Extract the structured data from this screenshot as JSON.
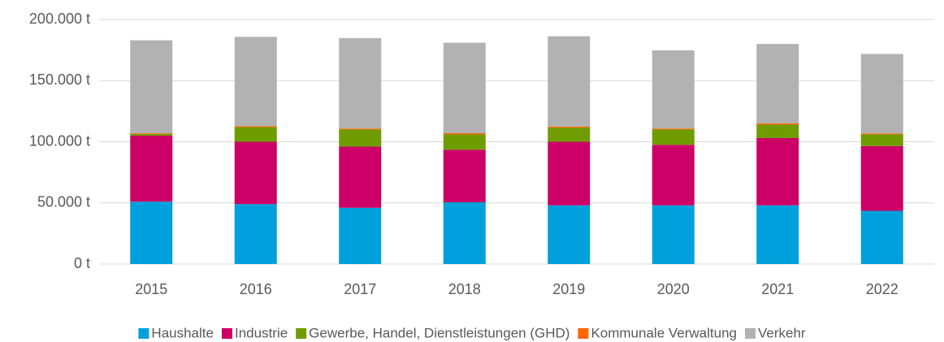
{
  "chart_data": {
    "type": "stacked_bar",
    "categories": [
      "2015",
      "2016",
      "2017",
      "2018",
      "2019",
      "2020",
      "2021",
      "2022"
    ],
    "series": [
      {
        "name": "Haushalte",
        "color": "#00a0dc",
        "values": [
          51000,
          49000,
          46000,
          50500,
          48000,
          48000,
          48000,
          43500
        ]
      },
      {
        "name": "Industrie",
        "color": "#cc0066",
        "values": [
          54000,
          51000,
          50000,
          43000,
          52000,
          49500,
          55000,
          53000
        ]
      },
      {
        "name": "Gewerbe, Handel, Dienstleistungen (GHD)",
        "color": "#6f9c00",
        "values": [
          1500,
          12000,
          14000,
          12500,
          11500,
          12500,
          11000,
          9500
        ]
      },
      {
        "name": "Kommunale Verwaltung",
        "color": "#ff6600",
        "values": [
          500,
          800,
          800,
          1000,
          800,
          800,
          1000,
          800
        ]
      },
      {
        "name": "Verkehr",
        "color": "#b2b2b2",
        "values": [
          76000,
          73000,
          74000,
          74000,
          74000,
          64000,
          65000,
          65000
        ]
      }
    ],
    "ylim": [
      0,
      200000
    ],
    "yticks": [
      {
        "value": 0,
        "label": "0 t"
      },
      {
        "value": 50000,
        "label": "50.000 t"
      },
      {
        "value": 100000,
        "label": "100.000 t"
      },
      {
        "value": 150000,
        "label": "150.000 t"
      },
      {
        "value": 200000,
        "label": "200.000 t"
      }
    ],
    "grid": true
  }
}
